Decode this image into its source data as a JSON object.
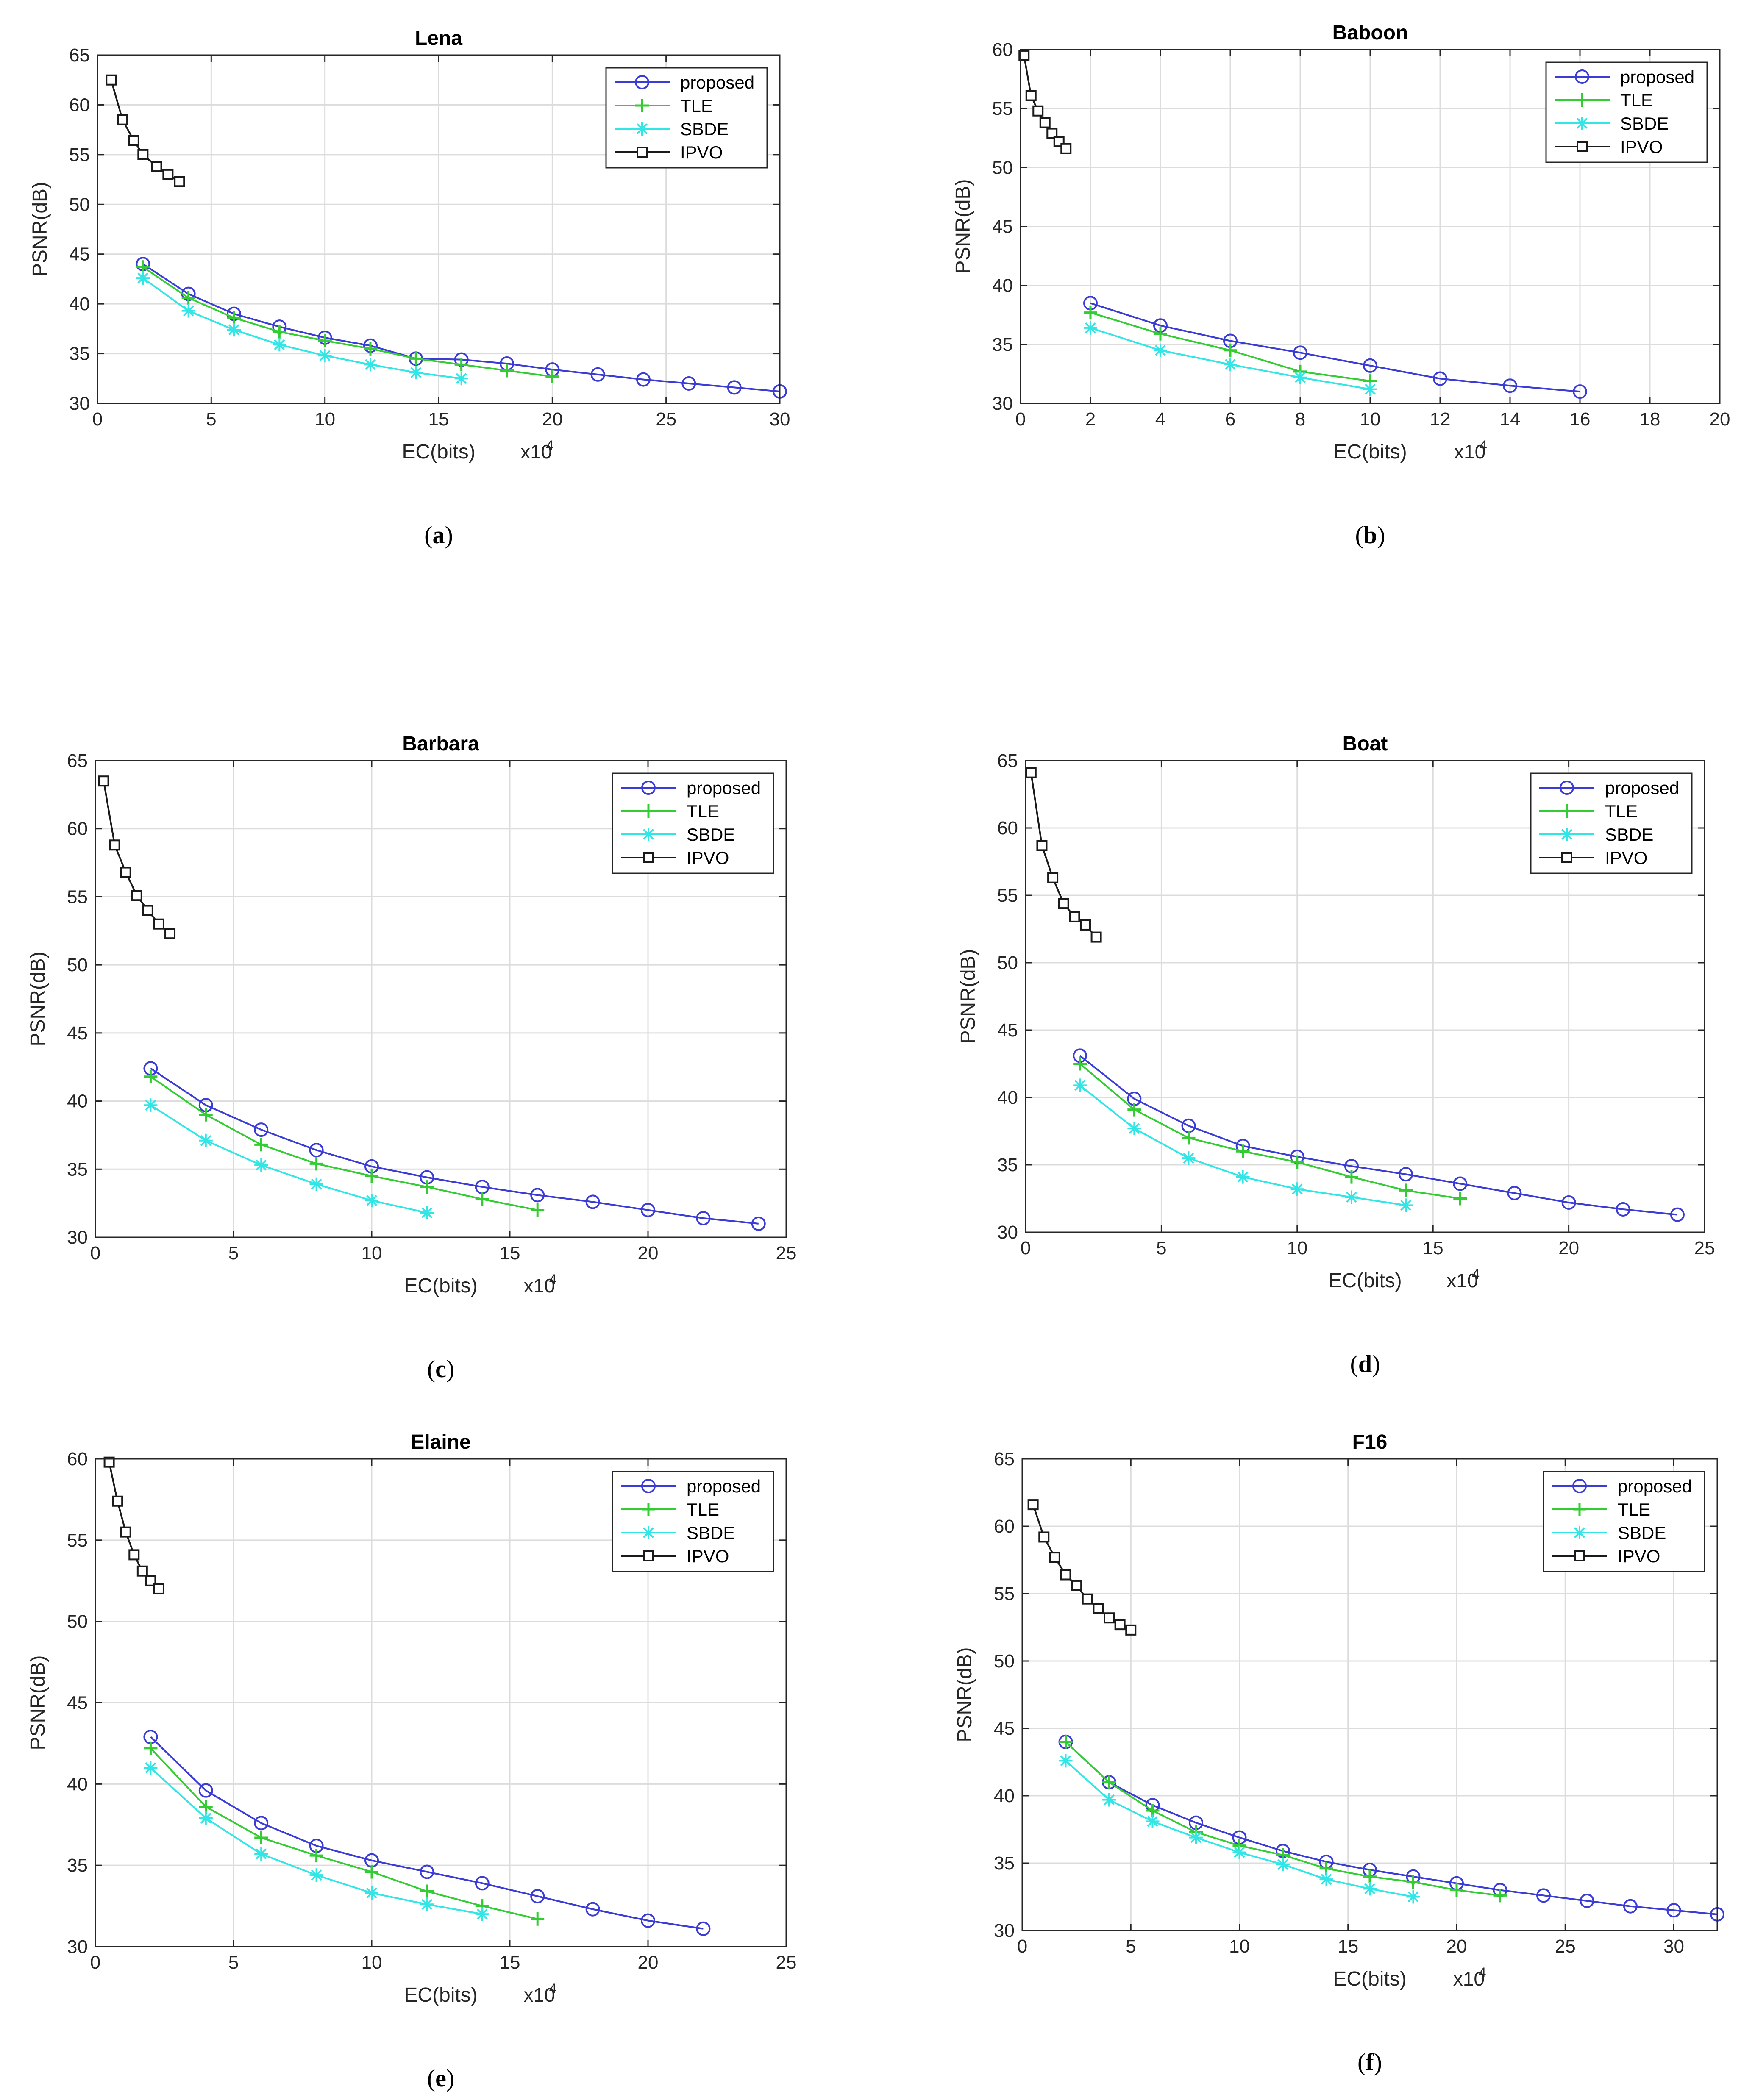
{
  "figure": {
    "background": "#ffffff"
  },
  "styles": {
    "proposed": {
      "color": "#3b3bd6",
      "marker": "circle"
    },
    "TLE": {
      "color": "#33cc33",
      "marker": "plus"
    },
    "SBDE": {
      "color": "#33e6e6",
      "marker": "asterisk"
    },
    "IPVO": {
      "color": "#1a1a1a",
      "marker": "square"
    }
  },
  "chart_data": [
    {
      "type": "line",
      "title": "Lena",
      "caption": "a",
      "xlabel": "EC(bits)",
      "ylabel": "PSNR(dB)",
      "x_multiplier": "x10",
      "x_multiplier_exp": "4",
      "xlim": [
        0,
        30
      ],
      "ylim": [
        30,
        65
      ],
      "xticks": [
        0,
        5,
        10,
        15,
        20,
        25,
        30
      ],
      "yticks": [
        30,
        35,
        40,
        45,
        50,
        55,
        60,
        65
      ],
      "grid": true,
      "legend_position": "top-right",
      "series": [
        {
          "name": "proposed",
          "x": [
            2,
            4,
            6,
            8,
            10,
            12,
            14,
            16,
            18,
            20,
            22,
            24,
            26,
            28,
            30
          ],
          "y": [
            44.0,
            41.0,
            39.0,
            37.7,
            36.6,
            35.8,
            34.5,
            34.4,
            34.0,
            33.4,
            32.9,
            32.4,
            32.0,
            31.6,
            31.2
          ]
        },
        {
          "name": "TLE",
          "x": [
            2,
            4,
            6,
            8,
            10,
            12,
            14,
            16,
            18,
            20
          ],
          "y": [
            43.7,
            40.6,
            38.6,
            37.2,
            36.3,
            35.5,
            34.5,
            33.9,
            33.3,
            32.7
          ]
        },
        {
          "name": "SBDE",
          "x": [
            2,
            4,
            6,
            8,
            10,
            12,
            14,
            16
          ],
          "y": [
            42.6,
            39.3,
            37.4,
            35.9,
            34.8,
            33.9,
            33.1,
            32.5
          ]
        },
        {
          "name": "IPVO",
          "x": [
            0.6,
            1.1,
            1.6,
            2.0,
            2.6,
            3.1,
            3.6
          ],
          "y": [
            62.5,
            58.5,
            56.4,
            55.0,
            53.8,
            53.0,
            52.3
          ]
        }
      ]
    },
    {
      "type": "line",
      "title": "Baboon",
      "caption": "b",
      "xlabel": "EC(bits)",
      "ylabel": "PSNR(dB)",
      "x_multiplier": "x10",
      "x_multiplier_exp": "4",
      "xlim": [
        0,
        20
      ],
      "ylim": [
        30,
        60
      ],
      "xticks": [
        0,
        2,
        4,
        6,
        8,
        10,
        12,
        14,
        16,
        18,
        20
      ],
      "yticks": [
        30,
        35,
        40,
        45,
        50,
        55,
        60
      ],
      "grid": true,
      "legend_position": "top-right",
      "series": [
        {
          "name": "proposed",
          "x": [
            2,
            4,
            6,
            8,
            10,
            12,
            14,
            16
          ],
          "y": [
            38.5,
            36.6,
            35.3,
            34.3,
            33.2,
            32.1,
            31.5,
            31.0
          ]
        },
        {
          "name": "TLE",
          "x": [
            2,
            4,
            6,
            8,
            10
          ],
          "y": [
            37.7,
            35.9,
            34.5,
            32.7,
            31.9
          ]
        },
        {
          "name": "SBDE",
          "x": [
            2,
            4,
            6,
            8,
            10
          ],
          "y": [
            36.4,
            34.5,
            33.3,
            32.2,
            31.2
          ]
        },
        {
          "name": "IPVO",
          "x": [
            0.1,
            0.3,
            0.5,
            0.7,
            0.9,
            1.1,
            1.3
          ],
          "y": [
            59.5,
            56.1,
            54.8,
            53.8,
            52.9,
            52.2,
            51.6
          ]
        }
      ]
    },
    {
      "type": "line",
      "title": "Barbara",
      "caption": "c",
      "xlabel": "EC(bits)",
      "ylabel": "PSNR(dB)",
      "x_multiplier": "x10",
      "x_multiplier_exp": "4",
      "xlim": [
        0,
        25
      ],
      "ylim": [
        30,
        65
      ],
      "xticks": [
        0,
        5,
        10,
        15,
        20,
        25
      ],
      "yticks": [
        30,
        35,
        40,
        45,
        50,
        55,
        60,
        65
      ],
      "grid": true,
      "legend_position": "top-right",
      "series": [
        {
          "name": "proposed",
          "x": [
            2,
            4,
            6,
            8,
            10,
            12,
            14,
            16,
            18,
            20,
            22,
            24
          ],
          "y": [
            42.4,
            39.7,
            37.9,
            36.4,
            35.2,
            34.4,
            33.7,
            33.1,
            32.6,
            32.0,
            31.4,
            31.0
          ]
        },
        {
          "name": "TLE",
          "x": [
            2,
            4,
            6,
            8,
            10,
            12,
            14,
            16
          ],
          "y": [
            41.8,
            39.0,
            36.8,
            35.4,
            34.5,
            33.7,
            32.8,
            32.0
          ]
        },
        {
          "name": "SBDE",
          "x": [
            2,
            4,
            6,
            8,
            10,
            12
          ],
          "y": [
            39.7,
            37.1,
            35.3,
            33.9,
            32.7,
            31.8
          ]
        },
        {
          "name": "IPVO",
          "x": [
            0.3,
            0.7,
            1.1,
            1.5,
            1.9,
            2.3,
            2.7
          ],
          "y": [
            63.5,
            58.8,
            56.8,
            55.1,
            54.0,
            53.0,
            52.3
          ]
        }
      ]
    },
    {
      "type": "line",
      "title": "Boat",
      "caption": "d",
      "xlabel": "EC(bits)",
      "ylabel": "PSNR(dB)",
      "x_multiplier": "x10",
      "x_multiplier_exp": "4",
      "xlim": [
        0,
        25
      ],
      "ylim": [
        30,
        65
      ],
      "xticks": [
        0,
        5,
        10,
        15,
        20,
        25
      ],
      "yticks": [
        30,
        35,
        40,
        45,
        50,
        55,
        60,
        65
      ],
      "grid": true,
      "legend_position": "top-right",
      "series": [
        {
          "name": "proposed",
          "x": [
            2,
            4,
            6,
            8,
            10,
            12,
            14,
            16,
            18,
            20,
            22,
            24
          ],
          "y": [
            43.1,
            39.9,
            37.9,
            36.4,
            35.6,
            34.9,
            34.3,
            33.6,
            32.9,
            32.2,
            31.7,
            31.3
          ]
        },
        {
          "name": "TLE",
          "x": [
            2,
            4,
            6,
            8,
            10,
            12,
            14,
            16
          ],
          "y": [
            42.5,
            39.1,
            37.0,
            36.0,
            35.2,
            34.1,
            33.1,
            32.5
          ]
        },
        {
          "name": "SBDE",
          "x": [
            2,
            4,
            6,
            8,
            10,
            12,
            14
          ],
          "y": [
            40.9,
            37.7,
            35.5,
            34.1,
            33.2,
            32.6,
            32.0
          ]
        },
        {
          "name": "IPVO",
          "x": [
            0.2,
            0.6,
            1.0,
            1.4,
            1.8,
            2.2,
            2.6
          ],
          "y": [
            64.1,
            58.7,
            56.3,
            54.4,
            53.4,
            52.8,
            51.9
          ]
        }
      ]
    },
    {
      "type": "line",
      "title": "Elaine",
      "caption": "e",
      "xlabel": "EC(bits)",
      "ylabel": "PSNR(dB)",
      "x_multiplier": "x10",
      "x_multiplier_exp": "4",
      "xlim": [
        0,
        25
      ],
      "ylim": [
        30,
        60
      ],
      "xticks": [
        0,
        5,
        10,
        15,
        20,
        25
      ],
      "yticks": [
        30,
        35,
        40,
        45,
        50,
        55,
        60
      ],
      "grid": true,
      "legend_position": "top-right",
      "series": [
        {
          "name": "proposed",
          "x": [
            2,
            4,
            6,
            8,
            10,
            12,
            14,
            16,
            18,
            20,
            22
          ],
          "y": [
            42.9,
            39.6,
            37.6,
            36.2,
            35.3,
            34.6,
            33.9,
            33.1,
            32.3,
            31.6,
            31.1
          ]
        },
        {
          "name": "TLE",
          "x": [
            2,
            4,
            6,
            8,
            10,
            12,
            14,
            16
          ],
          "y": [
            42.2,
            38.6,
            36.7,
            35.6,
            34.6,
            33.4,
            32.5,
            31.7
          ]
        },
        {
          "name": "SBDE",
          "x": [
            2,
            4,
            6,
            8,
            10,
            12,
            14
          ],
          "y": [
            41.0,
            37.9,
            35.7,
            34.4,
            33.3,
            32.6,
            32.0
          ]
        },
        {
          "name": "IPVO",
          "x": [
            0.5,
            0.8,
            1.1,
            1.4,
            1.7,
            2.0,
            2.3
          ],
          "y": [
            59.8,
            57.4,
            55.5,
            54.1,
            53.1,
            52.5,
            52.0
          ]
        }
      ]
    },
    {
      "type": "line",
      "title": "F16",
      "caption": "f",
      "xlabel": "EC(bits)",
      "ylabel": "PSNR(dB)",
      "x_multiplier": "x10",
      "x_multiplier_exp": "4",
      "xlim": [
        0,
        32
      ],
      "ylim": [
        30,
        65
      ],
      "xticks": [
        0,
        5,
        10,
        15,
        20,
        25,
        30
      ],
      "yticks": [
        30,
        35,
        40,
        45,
        50,
        55,
        60,
        65
      ],
      "grid": true,
      "legend_position": "top-right",
      "series": [
        {
          "name": "proposed",
          "x": [
            2,
            4,
            6,
            8,
            10,
            12,
            14,
            16,
            18,
            20,
            22,
            24,
            26,
            28,
            30,
            32
          ],
          "y": [
            44.0,
            41.0,
            39.3,
            38.0,
            36.9,
            35.9,
            35.1,
            34.5,
            34.0,
            33.5,
            33.0,
            32.6,
            32.2,
            31.8,
            31.5,
            31.2
          ]
        },
        {
          "name": "TLE",
          "x": [
            2,
            4,
            6,
            8,
            10,
            12,
            14,
            16,
            18,
            20,
            22
          ],
          "y": [
            44.0,
            41.0,
            38.9,
            37.3,
            36.3,
            35.6,
            34.6,
            34.0,
            33.6,
            33.0,
            32.6
          ]
        },
        {
          "name": "SBDE",
          "x": [
            2,
            4,
            6,
            8,
            10,
            12,
            14,
            16,
            18
          ],
          "y": [
            42.6,
            39.7,
            38.1,
            36.9,
            35.8,
            34.9,
            33.8,
            33.1,
            32.5
          ]
        },
        {
          "name": "IPVO",
          "x": [
            0.5,
            1.0,
            1.5,
            2.0,
            2.5,
            3.0,
            3.5,
            4.0,
            4.5,
            5.0
          ],
          "y": [
            61.6,
            59.2,
            57.7,
            56.4,
            55.6,
            54.6,
            53.9,
            53.2,
            52.7,
            52.3
          ]
        }
      ]
    }
  ]
}
